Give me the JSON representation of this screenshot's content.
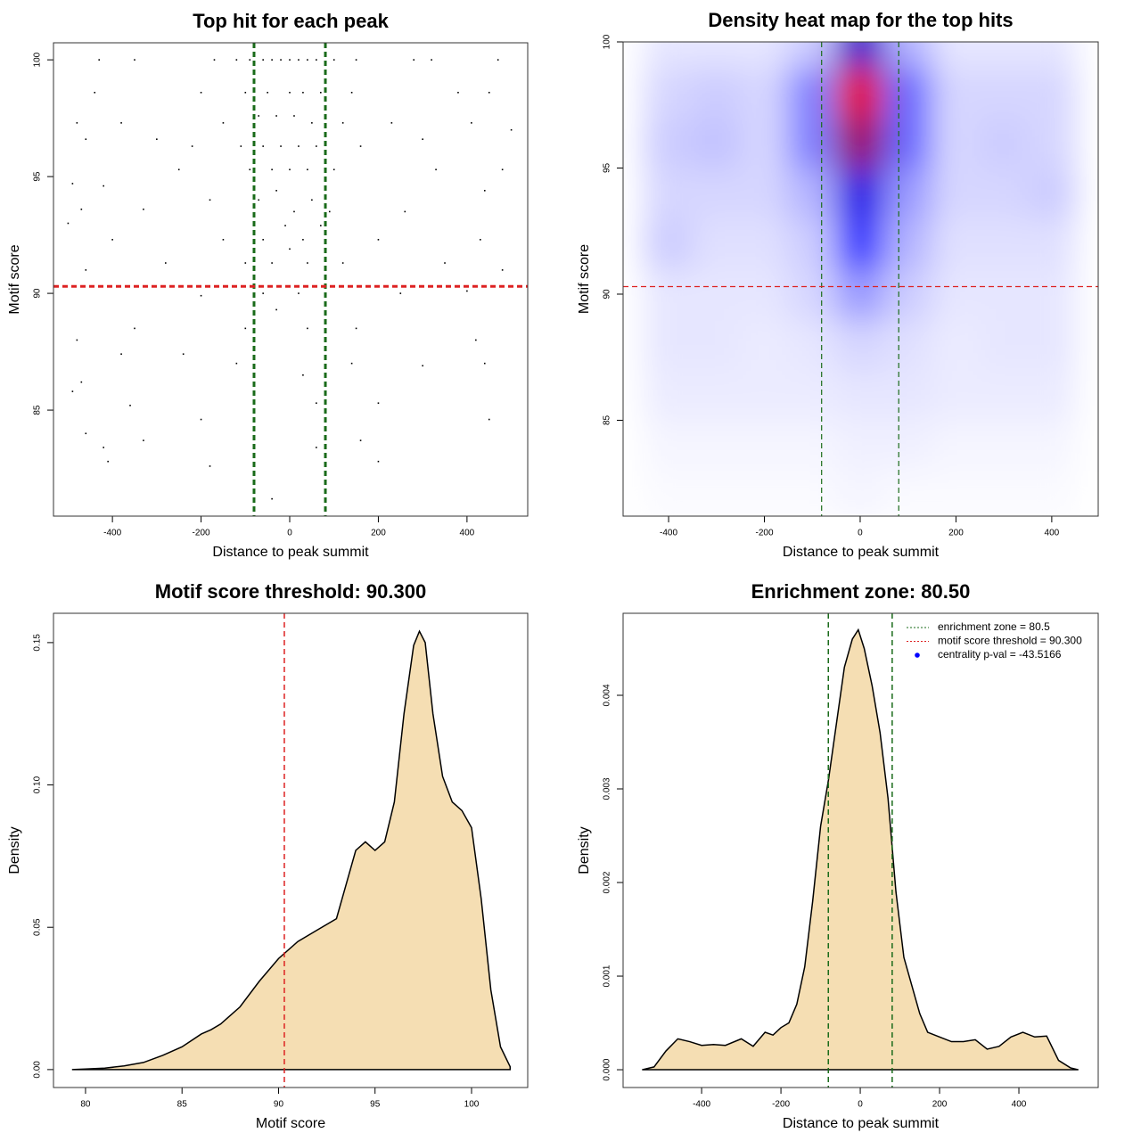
{
  "chart_data": [
    {
      "type": "scatter",
      "title": "Top hit for each peak",
      "x_label": "Distance to peak summit",
      "y_label": "Motif score",
      "xlim": [
        -533,
        537
      ],
      "ylim": [
        80.46,
        100.73
      ],
      "xticks": [
        -400,
        -200,
        0,
        200,
        400
      ],
      "yticks": [
        85,
        90,
        95,
        100
      ],
      "color": "#000000",
      "line_width": 3,
      "hlines": [
        {
          "value": 90.3,
          "color": "#dd2222"
        }
      ],
      "vlines": [
        {
          "value": -80.5,
          "color": "#1a6b1a"
        },
        {
          "value": 80.5,
          "color": "#1a6b1a"
        }
      ],
      "x": [
        -430,
        -350,
        -170,
        -120,
        -90,
        -60,
        -40,
        -20,
        0,
        20,
        40,
        60,
        100,
        150,
        280,
        320,
        470,
        -440,
        -200,
        -100,
        -50,
        0,
        30,
        70,
        140,
        380,
        450,
        -480,
        -380,
        -150,
        -70,
        -30,
        10,
        50,
        120,
        230,
        410,
        -460,
        -300,
        -220,
        -110,
        -60,
        -20,
        20,
        60,
        160,
        300,
        500,
        -490,
        -420,
        -250,
        -90,
        -40,
        0,
        40,
        100,
        330,
        480,
        -470,
        -330,
        -180,
        -70,
        -30,
        10,
        50,
        90,
        260,
        440,
        -500,
        -400,
        -150,
        -60,
        -10,
        30,
        70,
        200,
        430,
        -460,
        -280,
        -100,
        -40,
        0,
        40,
        120,
        350,
        480,
        -450,
        -200,
        -60,
        20,
        80,
        250,
        400,
        -480,
        -350,
        -100,
        -30,
        40,
        150,
        420,
        -470,
        -380,
        -240,
        -120,
        30,
        140,
        300,
        440,
        -490,
        -360,
        -200,
        60,
        200,
        450,
        -460,
        -420,
        -330,
        60,
        160,
        -410,
        -180,
        200,
        -40
      ],
      "y": [
        100,
        100,
        100,
        100,
        100,
        100,
        100,
        100,
        100,
        100,
        100,
        100,
        100,
        100,
        100,
        100,
        100,
        98.6,
        98.6,
        98.6,
        98.6,
        98.6,
        98.6,
        98.6,
        98.6,
        98.6,
        98.6,
        97.3,
        97.3,
        97.3,
        97.6,
        97.6,
        97.6,
        97.3,
        97.3,
        97.3,
        97.3,
        96.6,
        96.6,
        96.3,
        96.3,
        96.3,
        96.3,
        96.3,
        96.3,
        96.3,
        96.6,
        97,
        94.7,
        94.6,
        95.3,
        95.3,
        95.3,
        95.3,
        95.3,
        95.3,
        95.3,
        95.3,
        93.6,
        93.6,
        94,
        94,
        94.4,
        93.5,
        94,
        93.5,
        93.5,
        94.4,
        93,
        92.3,
        92.3,
        92.3,
        92.9,
        92.3,
        92.9,
        92.3,
        92.3,
        91,
        91.3,
        91.3,
        91.3,
        91.9,
        91.3,
        91.3,
        91.3,
        91,
        90.3,
        89.9,
        90,
        90,
        89.9,
        90,
        90.1,
        88,
        88.5,
        88.5,
        89.3,
        88.5,
        88.5,
        88,
        86.2,
        87.4,
        87.4,
        87,
        86.5,
        87,
        86.9,
        87,
        85.8,
        85.2,
        84.6,
        85.3,
        85.3,
        84.6,
        84,
        83.4,
        83.7,
        83.4,
        83.7,
        82.8,
        82.6,
        82.8,
        81.2
      ]
    },
    {
      "type": "heatmap",
      "title": "Density heat map for the top hits",
      "x_label": "Distance to peak summit",
      "y_label": "Motif score",
      "xlim": [
        -495,
        497
      ],
      "ylim": [
        81.2,
        100
      ],
      "xticks": [
        -400,
        -200,
        0,
        200,
        400
      ],
      "yticks": [
        85,
        90,
        95,
        100
      ],
      "colors": [
        "#ffffff",
        "#0000ff",
        "#ff0000"
      ],
      "line_width": 1.2,
      "hlines": [
        {
          "value": 90.3,
          "color": "#dd2222"
        }
      ],
      "vlines": [
        {
          "value": -80.5,
          "color": "#1a6b1a"
        },
        {
          "value": 80.5,
          "color": "#1a6b1a"
        }
      ],
      "x": [
        -400,
        -300,
        -200,
        -100,
        0,
        100,
        200,
        300,
        400
      ],
      "y": [
        82,
        84,
        86,
        88,
        90,
        92,
        94,
        96,
        98,
        100
      ],
      "z": [
        [
          0.01,
          0.01,
          0.01,
          0.01,
          0.02,
          0.01,
          0.01,
          0.01,
          0.01
        ],
        [
          0.02,
          0.02,
          0.02,
          0.02,
          0.03,
          0.03,
          0.02,
          0.02,
          0.02
        ],
        [
          0.04,
          0.04,
          0.04,
          0.04,
          0.05,
          0.05,
          0.04,
          0.04,
          0.04
        ],
        [
          0.05,
          0.05,
          0.04,
          0.05,
          0.08,
          0.06,
          0.04,
          0.05,
          0.05
        ],
        [
          0.05,
          0.05,
          0.05,
          0.08,
          0.2,
          0.1,
          0.05,
          0.05,
          0.05
        ],
        [
          0.1,
          0.06,
          0.06,
          0.1,
          0.4,
          0.15,
          0.06,
          0.06,
          0.06
        ],
        [
          0.08,
          0.08,
          0.08,
          0.15,
          0.55,
          0.2,
          0.08,
          0.08,
          0.1
        ],
        [
          0.1,
          0.12,
          0.08,
          0.25,
          0.8,
          0.3,
          0.08,
          0.1,
          0.08
        ],
        [
          0.08,
          0.1,
          0.08,
          0.25,
          0.95,
          0.3,
          0.08,
          0.08,
          0.08
        ],
        [
          0.05,
          0.05,
          0.05,
          0.1,
          0.6,
          0.15,
          0.05,
          0.05,
          0.05
        ]
      ]
    },
    {
      "type": "density",
      "title": "Motif score threshold: 90.300",
      "x_label": "Motif score",
      "y_label": "Density",
      "xlim": [
        78.34,
        102.91
      ],
      "ylim": [
        -0.0063,
        0.1603
      ],
      "xticks": [
        80,
        85,
        90,
        95,
        100
      ],
      "yticks": [
        {
          "value": 0,
          "label": "0.00"
        },
        {
          "value": 0.05,
          "label": "0.05"
        },
        {
          "value": 0.1,
          "label": "0.10"
        },
        {
          "value": 0.15,
          "label": "0.15"
        }
      ],
      "color": "#f5deb3",
      "line_width": 1.5,
      "vlines": [
        {
          "value": 90.3,
          "color": "#dd2222"
        }
      ],
      "x": [
        79.3,
        80,
        81,
        82,
        83,
        84,
        85,
        86,
        86.5,
        87,
        88,
        89,
        90,
        91,
        92,
        93,
        94,
        94.5,
        95,
        95.5,
        96,
        96.5,
        97,
        97.3,
        97.6,
        98,
        98.5,
        99,
        99.5,
        100,
        100.5,
        101,
        101.5,
        102
      ],
      "values": [
        0,
        0.0002,
        0.0005,
        0.0013,
        0.0025,
        0.005,
        0.008,
        0.0125,
        0.014,
        0.016,
        0.022,
        0.031,
        0.039,
        0.045,
        0.049,
        0.053,
        0.077,
        0.08,
        0.077,
        0.08,
        0.094,
        0.125,
        0.149,
        0.154,
        0.15,
        0.125,
        0.103,
        0.094,
        0.091,
        0.085,
        0.06,
        0.028,
        0.008,
        0.001
      ]
    },
    {
      "type": "density",
      "title": "Enrichment zone: 80.50",
      "x_label": "Distance to peak summit",
      "y_label": "Density",
      "xlim": [
        -598,
        600
      ],
      "ylim": [
        -0.00019,
        0.004876
      ],
      "xticks": [
        -400,
        -200,
        0,
        200,
        400
      ],
      "yticks": [
        {
          "value": 0,
          "label": "0.000"
        },
        {
          "value": 0.001,
          "label": "0.001"
        },
        {
          "value": 0.002,
          "label": "0.002"
        },
        {
          "value": 0.003,
          "label": "0.003"
        },
        {
          "value": 0.004,
          "label": "0.004"
        }
      ],
      "color": "#f5deb3",
      "line_width": 1.5,
      "vlines": [
        {
          "value": -80.5,
          "color": "#1a6b1a"
        },
        {
          "value": 80.5,
          "color": "#1a6b1a"
        }
      ],
      "legend_position": "top-right",
      "legend": [
        {
          "label": "enrichment zone = 80.5",
          "color": "#1a6b1a",
          "style": "dotted"
        },
        {
          "label": "motif score threshold = 90.300",
          "color": "#dd2222",
          "style": "dotted"
        },
        {
          "label": "centrality p-val = -43.5166",
          "color": "#0000ff",
          "style": "point"
        }
      ],
      "x": [
        -550,
        -520,
        -490,
        -460,
        -430,
        -400,
        -370,
        -340,
        -300,
        -270,
        -240,
        -220,
        -200,
        -180,
        -160,
        -140,
        -120,
        -100,
        -80,
        -60,
        -40,
        -20,
        -5,
        10,
        30,
        50,
        70,
        90,
        110,
        130,
        150,
        170,
        200,
        230,
        260,
        290,
        320,
        350,
        380,
        410,
        440,
        470,
        500,
        530,
        550
      ],
      "values": [
        0,
        3e-05,
        0.0002,
        0.00033,
        0.0003,
        0.00026,
        0.00027,
        0.00026,
        0.00033,
        0.00025,
        0.0004,
        0.00037,
        0.00045,
        0.0005,
        0.0007,
        0.0011,
        0.0018,
        0.0026,
        0.0031,
        0.0037,
        0.0043,
        0.0046,
        0.0047,
        0.0045,
        0.0041,
        0.0036,
        0.0029,
        0.0019,
        0.0012,
        0.0009,
        0.0006,
        0.0004,
        0.00035,
        0.0003,
        0.0003,
        0.00032,
        0.00022,
        0.00025,
        0.00035,
        0.0004,
        0.00035,
        0.00036,
        0.0001,
        2e-05,
        0
      ]
    }
  ]
}
